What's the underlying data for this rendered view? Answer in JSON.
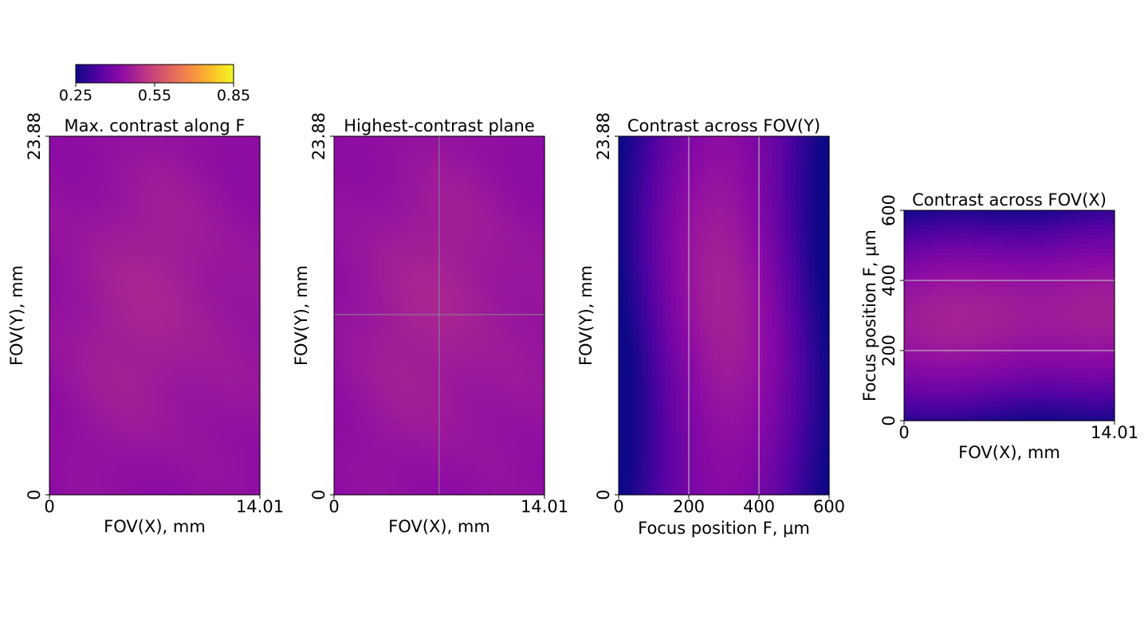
{
  "colormap": {
    "name": "plasma",
    "stops": [
      "#0d0887",
      "#5402a3",
      "#8b0aa5",
      "#b83289",
      "#db5c68",
      "#f48849",
      "#febd2a",
      "#f0f921"
    ]
  },
  "colorbar": {
    "min": 0.25,
    "max": 0.85,
    "ticks": [
      "0.25",
      "0.55",
      "0.85"
    ]
  },
  "chart_data": [
    {
      "type": "heatmap",
      "title": "Max. contrast along F",
      "xlabel": "FOV(X), mm",
      "ylabel": "FOV(Y), mm",
      "xlim": [
        0,
        14.01
      ],
      "ylim": [
        0,
        23.88
      ],
      "xticks": [
        "0",
        "14.01"
      ],
      "yticks": [
        "0",
        "23.88"
      ],
      "value_range": [
        0.4,
        0.47
      ],
      "value_pattern": "uniform with slightly higher contrast near the center",
      "crosshair": null
    },
    {
      "type": "heatmap",
      "title": "Highest-contrast plane",
      "xlabel": "FOV(X), mm",
      "ylabel": "FOV(Y), mm",
      "xlim": [
        0,
        14.01
      ],
      "ylim": [
        0,
        23.88
      ],
      "xticks": [
        "0",
        "14.01"
      ],
      "yticks": [
        "0",
        "23.88"
      ],
      "value_range": [
        0.4,
        0.47
      ],
      "value_pattern": "uniform with slightly higher contrast near the center",
      "crosshair": {
        "x": 7.0,
        "y": 12.0
      }
    },
    {
      "type": "heatmap",
      "title": "Contrast across FOV(Y)",
      "xlabel": "Focus position F, μm",
      "ylabel": "FOV(Y), mm",
      "xlim": [
        0,
        600
      ],
      "ylim": [
        0,
        23.88
      ],
      "xticks": [
        "0",
        "200",
        "400",
        "600"
      ],
      "yticks": [
        "0",
        "23.88"
      ],
      "value_range": [
        0.25,
        0.47
      ],
      "value_pattern": "peak near F=300, falling to minimum at F=0 and F=600",
      "vlines": [
        200,
        400
      ]
    },
    {
      "type": "heatmap",
      "title": "Contrast across FOV(X)",
      "xlabel": "FOV(X), mm",
      "ylabel": "Focus position F, μm",
      "xlim": [
        0,
        14.01
      ],
      "ylim": [
        0,
        600
      ],
      "xticks": [
        "0",
        "14.01"
      ],
      "yticks": [
        "0",
        "200",
        "400",
        "600"
      ],
      "value_range": [
        0.25,
        0.47
      ],
      "value_pattern": "peak near F=300, minimum at F=600 (left) and F=0 (right)",
      "hlines": [
        200,
        400
      ]
    }
  ]
}
